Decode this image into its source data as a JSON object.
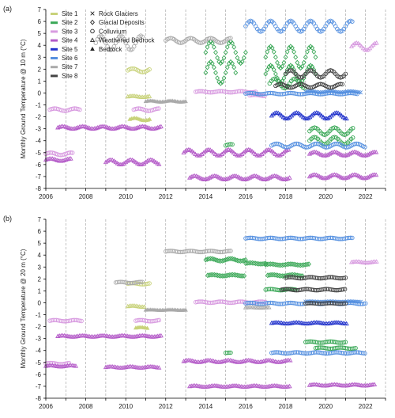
{
  "palette": {
    "site1": "#c8d27a",
    "site2": "#3aa857",
    "site3": "#d89be0",
    "site4": "#b45bc8",
    "site5": "#2233cc",
    "site6": "#5590e0",
    "site7": "#aaaaaa",
    "site8": "#444444",
    "axis": "#000000",
    "grid": "#9a9a9a"
  },
  "legend": {
    "sites": [
      "Site 1",
      "Site 2",
      "Site 3",
      "Site 4",
      "Site 5",
      "Site 6",
      "Site 7",
      "Site 8"
    ],
    "types": [
      "Rock Glaciers",
      "Glacial Deposits",
      "Colluvium",
      "Weathered Bedrock",
      "Bedrock"
    ],
    "type_markers": [
      "cross",
      "diamond",
      "circle",
      "triangle-open",
      "triangle-filled"
    ]
  },
  "chart_data": [
    {
      "type": "scatter",
      "panel": "(a)",
      "ylabel": "Monthly Ground Temperature @ 10 m (°C)",
      "xlabel": "",
      "xlim": [
        2006,
        2023
      ],
      "ylim": [
        -8,
        7
      ],
      "xticks": [
        2006,
        2008,
        2010,
        2012,
        2014,
        2016,
        2018,
        2020,
        2022
      ],
      "yticks": [
        -8,
        -7,
        -6,
        -5,
        -4,
        -3,
        -2,
        -1,
        0,
        1,
        2,
        3,
        4,
        5,
        6,
        7
      ],
      "grid": "vertical dashed at each year",
      "series": [
        {
          "site": "site1",
          "marker": "circle",
          "x0": 2010.1,
          "x1": 2011.2,
          "y": 1.9,
          "amp": 0.15,
          "period": 1
        },
        {
          "site": "site1",
          "marker": "triangle-open",
          "x0": 2010.1,
          "x1": 2011.2,
          "y": -0.3,
          "amp": 0.05,
          "period": 1
        },
        {
          "site": "site1",
          "marker": "triangle-filled",
          "x0": 2010.2,
          "x1": 2011.2,
          "y": -2.2,
          "amp": 0.1,
          "period": 1
        },
        {
          "site": "site2",
          "marker": "diamond",
          "x0": 2014.0,
          "x1": 2016.0,
          "y": 3.4,
          "amp": 0.9,
          "period": 1
        },
        {
          "site": "site2",
          "marker": "diamond",
          "x0": 2014.0,
          "x1": 2015.5,
          "y": 1.7,
          "amp": 0.9,
          "period": 1
        },
        {
          "site": "site2",
          "marker": "diamond",
          "x0": 2017.0,
          "x1": 2019.5,
          "y": 3.0,
          "amp": 0.9,
          "period": 1
        },
        {
          "site": "site2",
          "marker": "diamond",
          "x0": 2017.0,
          "x1": 2019.5,
          "y": 1.6,
          "amp": 0.7,
          "period": 1
        },
        {
          "site": "site2",
          "marker": "circle",
          "x0": 2017.2,
          "x1": 2019.0,
          "y": 0.8,
          "amp": 0.4,
          "period": 1
        },
        {
          "site": "site2",
          "marker": "circle",
          "x0": 2019.2,
          "x1": 2021.4,
          "y": -3.2,
          "amp": 0.3,
          "period": 1
        },
        {
          "site": "site2",
          "marker": "circle",
          "x0": 2019.2,
          "x1": 2021.4,
          "y": -4.0,
          "amp": 0.3,
          "period": 1
        },
        {
          "site": "site2",
          "marker": "circle",
          "x0": 2015.0,
          "x1": 2015.4,
          "y": -4.4,
          "amp": 0.1,
          "period": 1
        },
        {
          "site": "site3",
          "marker": "circle",
          "x0": 2006.2,
          "x1": 2007.7,
          "y": -1.4,
          "amp": 0.1,
          "period": 1
        },
        {
          "site": "site3",
          "marker": "circle",
          "x0": 2006.0,
          "x1": 2007.4,
          "y": -5.1,
          "amp": 0.1,
          "period": 1
        },
        {
          "site": "site3",
          "marker": "circle",
          "x0": 2010.4,
          "x1": 2011.7,
          "y": -1.4,
          "amp": 0.1,
          "period": 1
        },
        {
          "site": "site3",
          "marker": "circle",
          "x0": 2013.5,
          "x1": 2016.5,
          "y": 0.1,
          "amp": 0.05,
          "period": 1
        },
        {
          "site": "site3",
          "marker": "circle",
          "x0": 2016.2,
          "x1": 2017.0,
          "y": -0.2,
          "amp": 0.05,
          "period": 1
        },
        {
          "site": "site3",
          "marker": "triangle-open",
          "x0": 2021.3,
          "x1": 2022.6,
          "y": 3.9,
          "amp": 0.3,
          "period": 1
        },
        {
          "site": "site4",
          "marker": "triangle-open",
          "x0": 2006.6,
          "x1": 2011.8,
          "y": -2.9,
          "amp": 0.1,
          "period": 1
        },
        {
          "site": "site4",
          "marker": "triangle-open",
          "x0": 2006.0,
          "x1": 2007.3,
          "y": -5.6,
          "amp": 0.1,
          "period": 1
        },
        {
          "site": "site4",
          "marker": "triangle-open",
          "x0": 2009.0,
          "x1": 2011.7,
          "y": -5.8,
          "amp": 0.2,
          "period": 1
        },
        {
          "site": "site4",
          "marker": "triangle-open",
          "x0": 2012.9,
          "x1": 2018.2,
          "y": -5.0,
          "amp": 0.25,
          "period": 1
        },
        {
          "site": "site4",
          "marker": "triangle-open",
          "x0": 2013.2,
          "x1": 2018.2,
          "y": -7.1,
          "amp": 0.15,
          "period": 1
        },
        {
          "site": "site4",
          "marker": "triangle-open",
          "x0": 2019.2,
          "x1": 2022.6,
          "y": -5.1,
          "amp": 0.15,
          "period": 1
        },
        {
          "site": "site4",
          "marker": "triangle-open",
          "x0": 2019.2,
          "x1": 2022.6,
          "y": -7.0,
          "amp": 0.15,
          "period": 1
        },
        {
          "site": "site5",
          "marker": "triangle-open",
          "x0": 2017.3,
          "x1": 2021.1,
          "y": -1.9,
          "amp": 0.25,
          "period": 1
        },
        {
          "site": "site6",
          "marker": "circle",
          "x0": 2016.0,
          "x1": 2021.4,
          "y": 5.6,
          "amp": 0.45,
          "period": 1
        },
        {
          "site": "site6",
          "marker": "circle",
          "x0": 2016.0,
          "x1": 2021.6,
          "y": -0.05,
          "amp": 0.05,
          "period": 1
        },
        {
          "site": "site6",
          "marker": "circle",
          "x0": 2017.3,
          "x1": 2022.0,
          "y": -4.4,
          "amp": 0.15,
          "period": 1
        },
        {
          "site": "site6",
          "marker": "cross",
          "x0": 2019.0,
          "x1": 2021.8,
          "y": 0.1,
          "amp": 0.05,
          "period": 1
        },
        {
          "site": "site7",
          "marker": "circle",
          "x0": 2008.5,
          "x1": 2010.9,
          "y": 4.2,
          "amp": 0.6,
          "period": 1
        },
        {
          "site": "site7",
          "marker": "circle",
          "x0": 2012.0,
          "x1": 2015.3,
          "y": 4.4,
          "amp": 0.2,
          "period": 1
        },
        {
          "site": "site7",
          "marker": "triangle-filled",
          "x0": 2011.0,
          "x1": 2013.0,
          "y": -0.7,
          "amp": 0.05,
          "period": 1
        },
        {
          "site": "site8",
          "marker": "circle",
          "x0": 2018.0,
          "x1": 2021.0,
          "y": 1.6,
          "amp": 0.3,
          "period": 1
        },
        {
          "site": "site8",
          "marker": "circle",
          "x0": 2017.5,
          "x1": 2020.9,
          "y": 0.6,
          "amp": 0.15,
          "period": 1
        }
      ]
    },
    {
      "type": "scatter",
      "panel": "(b)",
      "ylabel": "Monthly Ground Temperature @ 20 m (°C)",
      "xlabel": "",
      "xlim": [
        2006,
        2023
      ],
      "ylim": [
        -8,
        7
      ],
      "xticks": [
        2006,
        2008,
        2010,
        2012,
        2014,
        2016,
        2018,
        2020,
        2022
      ],
      "yticks": [
        -8,
        -7,
        -6,
        -5,
        -4,
        -3,
        -2,
        -1,
        0,
        1,
        2,
        3,
        4,
        5,
        6,
        7
      ],
      "grid": "vertical dashed at each year",
      "series": [
        {
          "site": "site1",
          "marker": "circle",
          "x0": 2010.1,
          "x1": 2011.2,
          "y": 1.6,
          "amp": 0.05,
          "period": 1
        },
        {
          "site": "site1",
          "marker": "triangle-open",
          "x0": 2010.1,
          "x1": 2011.0,
          "y": -0.3,
          "amp": 0.05,
          "period": 1
        },
        {
          "site": "site1",
          "marker": "triangle-filled",
          "x0": 2010.5,
          "x1": 2011.1,
          "y": -2.1,
          "amp": 0.05,
          "period": 1
        },
        {
          "site": "site2",
          "marker": "diamond",
          "x0": 2014.0,
          "x1": 2016.0,
          "y": 3.6,
          "amp": 0.1,
          "period": 1
        },
        {
          "site": "site2",
          "marker": "diamond",
          "x0": 2014.1,
          "x1": 2016.0,
          "y": 2.3,
          "amp": 0.05,
          "period": 1
        },
        {
          "site": "site2",
          "marker": "diamond",
          "x0": 2016.0,
          "x1": 2017.0,
          "y": 3.3,
          "amp": 0.05,
          "period": 1
        },
        {
          "site": "site2",
          "marker": "diamond",
          "x0": 2017.0,
          "x1": 2019.2,
          "y": 3.2,
          "amp": 0.05,
          "period": 1
        },
        {
          "site": "site2",
          "marker": "diamond",
          "x0": 2017.1,
          "x1": 2018.9,
          "y": 2.3,
          "amp": 0.05,
          "period": 1
        },
        {
          "site": "site2",
          "marker": "circle",
          "x0": 2017.0,
          "x1": 2018.5,
          "y": 1.1,
          "amp": 0.05,
          "period": 1
        },
        {
          "site": "site2",
          "marker": "circle",
          "x0": 2019.0,
          "x1": 2021.0,
          "y": -3.3,
          "amp": 0.05,
          "period": 1
        },
        {
          "site": "site2",
          "marker": "circle",
          "x0": 2019.5,
          "x1": 2021.5,
          "y": -3.8,
          "amp": 0.05,
          "period": 1
        },
        {
          "site": "site2",
          "marker": "circle",
          "x0": 2015.0,
          "x1": 2015.3,
          "y": -4.2,
          "amp": 0.02,
          "period": 1
        },
        {
          "site": "site3",
          "marker": "circle",
          "x0": 2006.2,
          "x1": 2007.8,
          "y": -1.5,
          "amp": 0.05,
          "period": 1
        },
        {
          "site": "site3",
          "marker": "circle",
          "x0": 2010.5,
          "x1": 2011.7,
          "y": -1.5,
          "amp": 0.05,
          "period": 1
        },
        {
          "site": "site3",
          "marker": "circle",
          "x0": 2013.5,
          "x1": 2017.0,
          "y": 0.05,
          "amp": 0.05,
          "period": 1
        },
        {
          "site": "site3",
          "marker": "circle",
          "x0": 2006.0,
          "x1": 2007.2,
          "y": -5.1,
          "amp": 0.05,
          "period": 1
        },
        {
          "site": "site3",
          "marker": "triangle-open",
          "x0": 2021.3,
          "x1": 2022.6,
          "y": 3.4,
          "amp": 0.05,
          "period": 1
        },
        {
          "site": "site4",
          "marker": "triangle-open",
          "x0": 2006.6,
          "x1": 2011.8,
          "y": -2.8,
          "amp": 0.05,
          "period": 1
        },
        {
          "site": "site4",
          "marker": "triangle-open",
          "x0": 2006.0,
          "x1": 2007.5,
          "y": -5.3,
          "amp": 0.05,
          "period": 1
        },
        {
          "site": "site4",
          "marker": "triangle-open",
          "x0": 2009.0,
          "x1": 2011.7,
          "y": -5.4,
          "amp": 0.05,
          "period": 1
        },
        {
          "site": "site4",
          "marker": "triangle-open",
          "x0": 2012.9,
          "x1": 2018.3,
          "y": -4.9,
          "amp": 0.08,
          "period": 1
        },
        {
          "site": "site4",
          "marker": "triangle-open",
          "x0": 2013.2,
          "x1": 2018.2,
          "y": -7.0,
          "amp": 0.05,
          "period": 1
        },
        {
          "site": "site4",
          "marker": "triangle-open",
          "x0": 2019.2,
          "x1": 2022.5,
          "y": -6.9,
          "amp": 0.05,
          "period": 1
        },
        {
          "site": "site5",
          "marker": "triangle-open",
          "x0": 2017.3,
          "x1": 2021.1,
          "y": -1.7,
          "amp": 0.05,
          "period": 1
        },
        {
          "site": "site6",
          "marker": "circle",
          "x0": 2016.0,
          "x1": 2021.4,
          "y": 5.4,
          "amp": 0.05,
          "period": 1
        },
        {
          "site": "site6",
          "marker": "circle",
          "x0": 2016.0,
          "x1": 2022.0,
          "y": -0.05,
          "amp": 0.05,
          "period": 1
        },
        {
          "site": "site6",
          "marker": "circle",
          "x0": 2017.3,
          "x1": 2022.0,
          "y": -4.2,
          "amp": 0.05,
          "period": 1
        },
        {
          "site": "site6",
          "marker": "cross",
          "x0": 2019.0,
          "x1": 2021.8,
          "y": 0.1,
          "amp": 0.02,
          "period": 1
        },
        {
          "site": "site7",
          "marker": "circle",
          "x0": 2009.5,
          "x1": 2010.9,
          "y": 1.7,
          "amp": 0.05,
          "period": 1
        },
        {
          "site": "site7",
          "marker": "circle",
          "x0": 2012.0,
          "x1": 2015.3,
          "y": 4.3,
          "amp": 0.05,
          "period": 1
        },
        {
          "site": "site7",
          "marker": "triangle-filled",
          "x0": 2011.0,
          "x1": 2013.0,
          "y": -0.6,
          "amp": 0.02,
          "period": 1
        },
        {
          "site": "site7",
          "marker": "triangle-open",
          "x0": 2016.0,
          "x1": 2017.2,
          "y": -0.4,
          "amp": 0.02,
          "period": 1
        },
        {
          "site": "site8",
          "marker": "circle",
          "x0": 2018.0,
          "x1": 2021.0,
          "y": 2.1,
          "amp": 0.05,
          "period": 1
        },
        {
          "site": "site8",
          "marker": "circle",
          "x0": 2017.8,
          "x1": 2021.0,
          "y": 1.1,
          "amp": 0.05,
          "period": 1
        },
        {
          "site": "site8",
          "marker": "circle",
          "x0": 2019.0,
          "x1": 2021.0,
          "y": -0.05,
          "amp": 0.02,
          "period": 1
        }
      ]
    }
  ]
}
